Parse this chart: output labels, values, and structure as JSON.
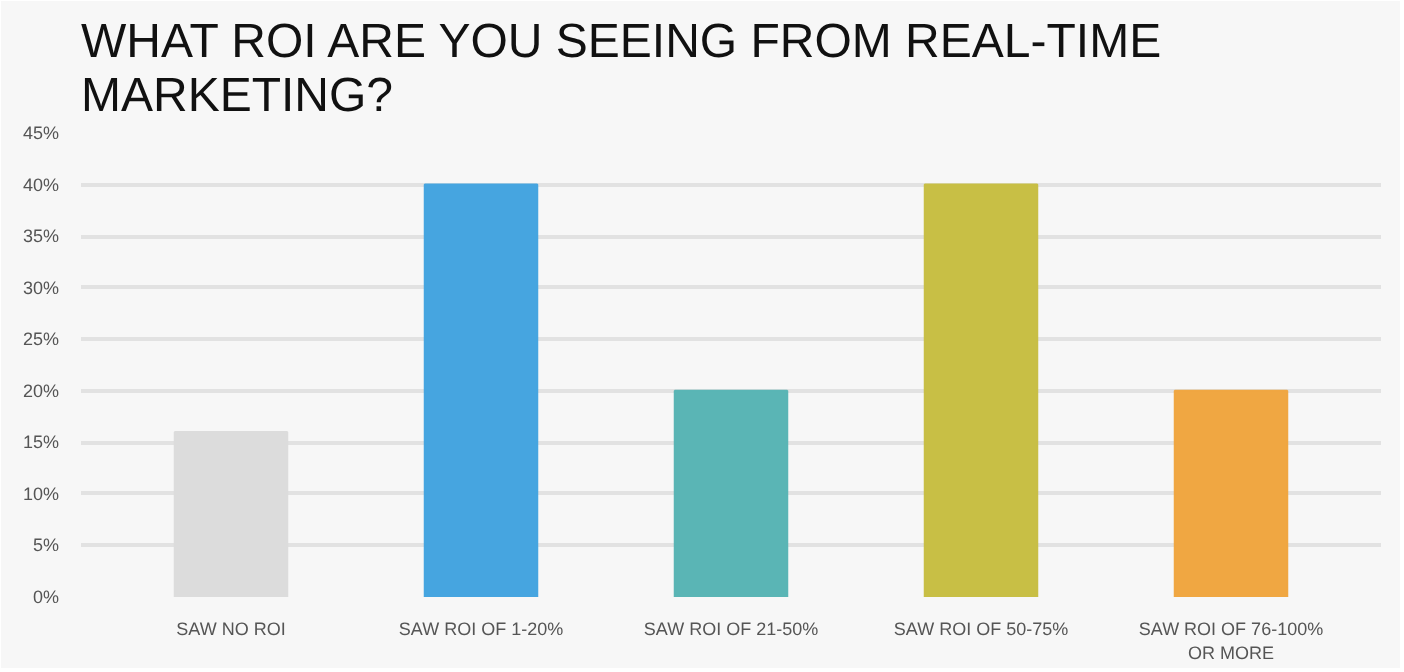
{
  "chart_data": {
    "type": "bar",
    "title": "WHAT ROI ARE YOU SEEING FROM REAL-TIME MARKETING?",
    "categories": [
      "SAW NO ROI",
      "SAW ROI OF 1-20%",
      "SAW ROI OF 21-50%",
      "SAW ROI OF 50-75%",
      "SAW ROI OF 76-100% OR MORE"
    ],
    "values": [
      16,
      40,
      20,
      40,
      20
    ],
    "colors": [
      "#dcdcdc",
      "#46a5e0",
      "#5ab5b5",
      "#c8bf45",
      "#f0a742"
    ],
    "ylim": [
      0,
      45
    ],
    "yticks": [
      {
        "value": 0,
        "label": "0%"
      },
      {
        "value": 5,
        "label": "5%"
      },
      {
        "value": 10,
        "label": "10%"
      },
      {
        "value": 15,
        "label": "15%"
      },
      {
        "value": 20,
        "label": "20%"
      },
      {
        "value": 25,
        "label": "25%"
      },
      {
        "value": 30,
        "label": "30%"
      },
      {
        "value": 35,
        "label": "35%"
      },
      {
        "value": 40,
        "label": "40%"
      },
      {
        "value": 45,
        "label": "45%"
      }
    ],
    "grid": "y"
  }
}
